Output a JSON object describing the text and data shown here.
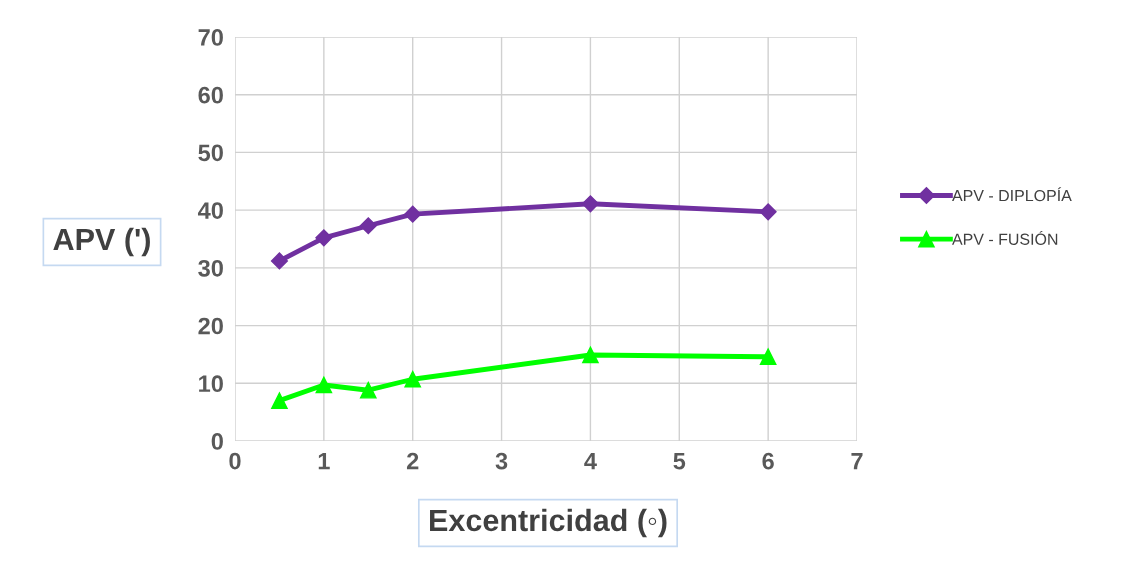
{
  "chart_data": {
    "type": "line",
    "xlabel": "Excentricidad (◦)",
    "ylabel": "APV (')",
    "xlim": [
      0,
      7
    ],
    "xticks": [
      0,
      1,
      2,
      3,
      4,
      5,
      6,
      7
    ],
    "ylim": [
      0,
      70
    ],
    "yticks": [
      0,
      10,
      20,
      30,
      40,
      50,
      60,
      70
    ],
    "grid": true,
    "legend": "right",
    "series": [
      {
        "name": "APV - DIPLOPÍA",
        "color": "#7030a0",
        "marker": "diamond",
        "x": [
          0.5,
          1,
          1.5,
          2,
          4,
          6
        ],
        "values": [
          31.2,
          35.2,
          37.3,
          39.3,
          41.1,
          39.7
        ]
      },
      {
        "name": "APV - FUSIÓN",
        "color": "#00ff00",
        "marker": "triangle",
        "x": [
          0.5,
          1,
          1.5,
          2,
          4,
          6
        ],
        "values": [
          7.0,
          9.7,
          8.8,
          10.7,
          14.9,
          14.6
        ]
      }
    ]
  }
}
